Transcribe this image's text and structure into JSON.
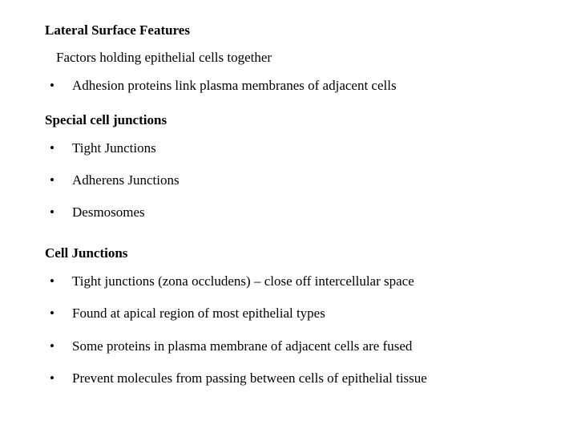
{
  "colors": {
    "background": "#ffffff",
    "text": "#000000"
  },
  "typography": {
    "font_family": "Times New Roman",
    "base_fontsize": 17,
    "heading_weight": "bold"
  },
  "section1": {
    "heading": "Lateral Surface Features",
    "subline": "Factors holding epithelial cells together",
    "bullets": [
      "Adhesion proteins link plasma membranes of adjacent cells"
    ]
  },
  "section2": {
    "heading": "Special cell junctions",
    "bullets": [
      "Tight Junctions",
      "Adherens Junctions",
      "Desmosomes"
    ]
  },
  "section3": {
    "heading": "Cell Junctions",
    "bullets": [
      "Tight junctions (zona occludens) – close off intercellular space",
      "Found at apical region of most epithelial types",
      "Some proteins in plasma membrane of adjacent cells are fused",
      "Prevent molecules from passing between cells of epithelial tissue"
    ]
  }
}
